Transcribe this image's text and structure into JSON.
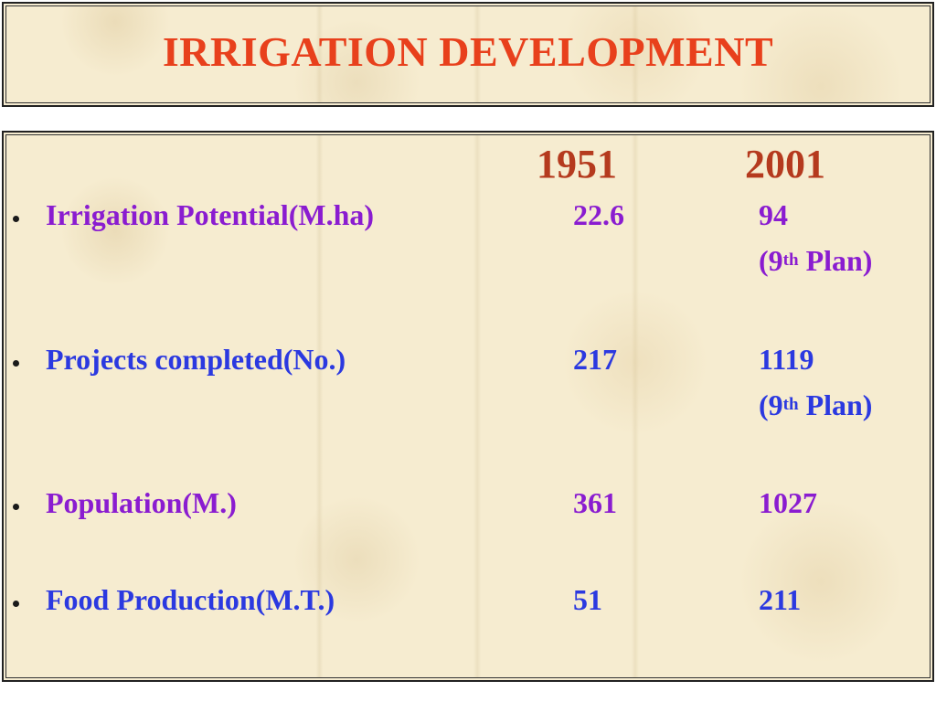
{
  "slide": {
    "title": "IRRIGATION DEVELOPMENT",
    "columns": [
      "1951",
      "2001"
    ],
    "rows": [
      {
        "label": "Irrigation Potential(M.ha)",
        "v1951": "22.6",
        "v2001": "94",
        "note_prefix": "(9",
        "note_sup": "th",
        "note_suffix": " Plan)",
        "color": "purple"
      },
      {
        "label": "Projects completed(No.)",
        "v1951": "217",
        "v2001": "1119",
        "note_prefix": "(9",
        "note_sup": "th",
        "note_suffix": " Plan)",
        "color": "blue"
      },
      {
        "label": "Population(M.)",
        "v1951": "361",
        "v2001": "1027",
        "color": "purple"
      },
      {
        "label": "Food Production(M.T.)",
        "v1951": "51",
        "v2001": "211",
        "color": "blue"
      }
    ]
  },
  "colors": {
    "title": "#e8401c",
    "year": "#b53a1e",
    "blue": "#2b39e0",
    "purple": "#8a1cd0",
    "background": "#f6ecd0"
  }
}
